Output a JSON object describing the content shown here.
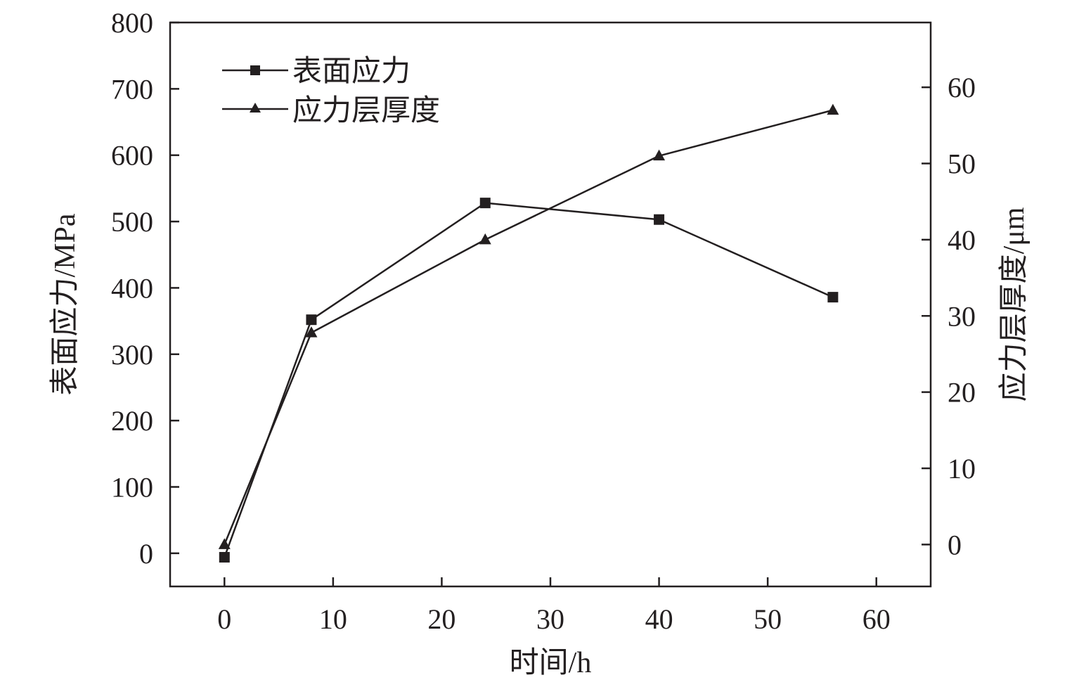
{
  "chart_data": {
    "type": "line",
    "x": [
      0,
      8,
      24,
      40,
      56
    ],
    "xlabel": "时间/h",
    "xlim": [
      -5,
      65
    ],
    "xticks": [
      "0",
      "10",
      "20",
      "30",
      "40",
      "50",
      "60"
    ],
    "ylabel_left": "表面应力/MPa",
    "ylim_left": [
      -50,
      800
    ],
    "yticks_left": [
      "0",
      "100",
      "200",
      "300",
      "400",
      "500",
      "600",
      "700",
      "800"
    ],
    "ylabel_right": "应力层厚度/μm",
    "ylim_right": [
      -5.5,
      68.5
    ],
    "yticks_right": [
      "0",
      "10",
      "20",
      "30",
      "40",
      "50",
      "60"
    ],
    "series": [
      {
        "name": "表面应力",
        "axis": "left",
        "marker": "square",
        "values": [
          -6,
          352,
          528,
          503,
          386
        ]
      },
      {
        "name": "应力层厚度",
        "axis": "right",
        "marker": "triangle",
        "values": [
          0,
          27.8,
          40,
          51,
          57
        ]
      }
    ],
    "legend_position": "top-left",
    "grid": false,
    "line_color": "#231f20"
  }
}
